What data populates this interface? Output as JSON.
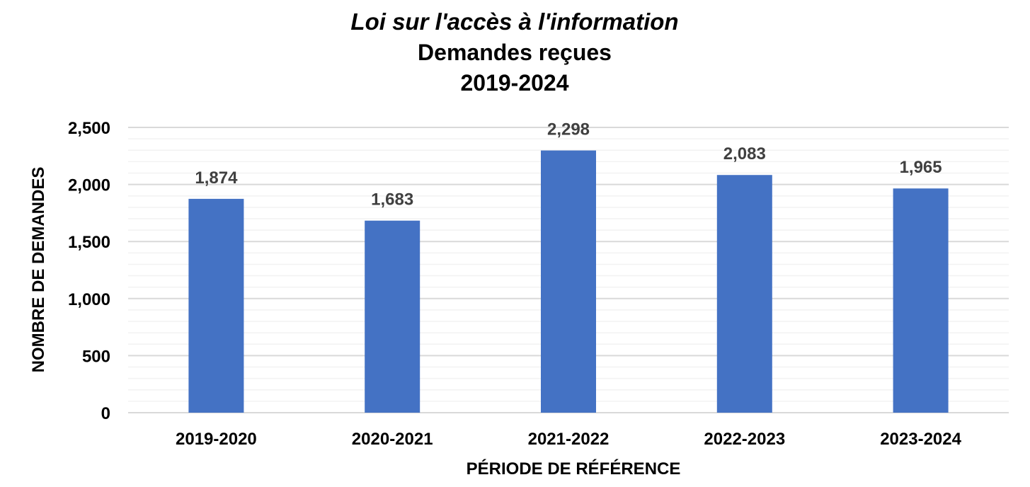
{
  "chart_data": {
    "type": "bar",
    "title": "Loi sur l'accès à l'information",
    "subtitle": "Demandes reçues",
    "subtitle2": "2019-2024",
    "xlabel": "PÉRIODE DE RÉFÉRENCE",
    "ylabel": "NOMBRE DE DEMANDES",
    "categories": [
      "2019-2020",
      "2020-2021",
      "2021-2022",
      "2022-2023",
      "2023-2024"
    ],
    "values": [
      1874,
      1683,
      2298,
      2083,
      1965
    ],
    "value_labels": [
      "1,874",
      "1,683",
      "2,298",
      "2,083",
      "1,965"
    ],
    "ylim": [
      0,
      2500
    ],
    "yticks": [
      0,
      500,
      1000,
      1500,
      2000,
      2500
    ],
    "ytick_labels": [
      "0",
      "500",
      "1,000",
      "1,500",
      "2,000",
      "2,500"
    ],
    "minor_step": 100,
    "grid": true,
    "legend": "none",
    "bar_color": "#4472C4",
    "grid_color": "#D9D9D9",
    "minor_grid_color": "#F2F2F2"
  }
}
